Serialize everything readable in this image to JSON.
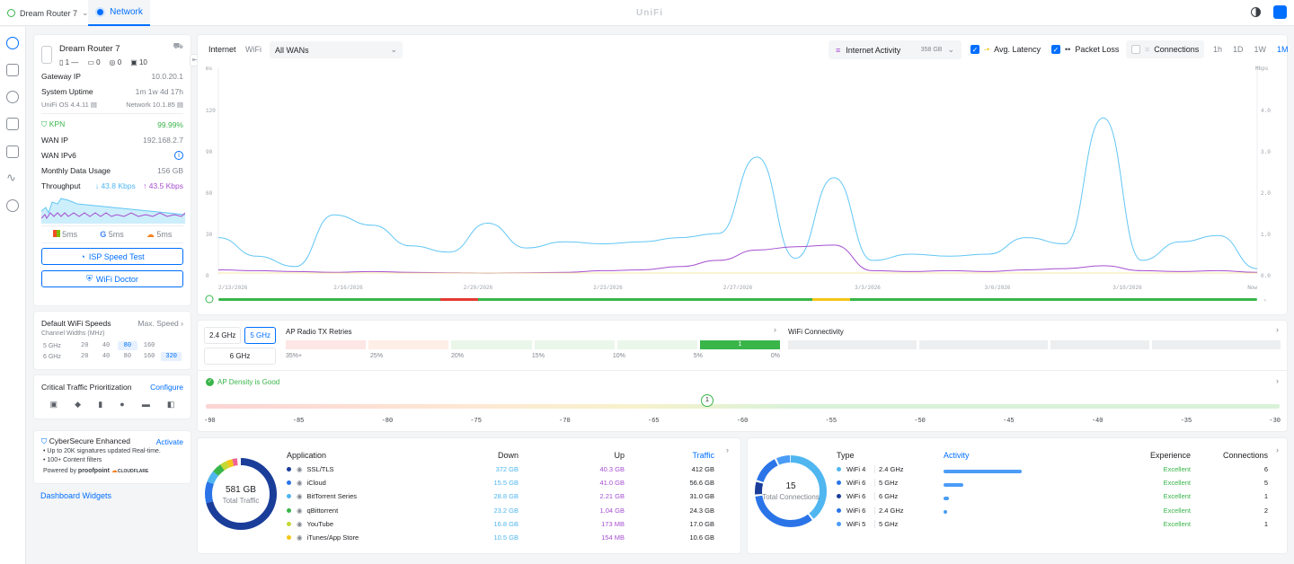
{
  "topbar": {
    "device": "Dream Router 7",
    "tab": "Network",
    "logo": "UniFi"
  },
  "device": {
    "name": "Dream Router 7",
    "ports": [
      {
        "icon": "phone-icon",
        "n": "1"
      },
      {
        "icon": "switch-icon",
        "n": "0"
      },
      {
        "icon": "ap-icon",
        "n": "0"
      },
      {
        "icon": "client-icon",
        "n": "10"
      }
    ],
    "gateway_label": "Gateway IP",
    "gateway": "10.0.20.1",
    "uptime_label": "System Uptime",
    "uptime": "1m 1w 4d 17h",
    "os": "UniFi OS 4.4.11",
    "network": "Network 10.1.85"
  },
  "wan": {
    "isp": "KPN",
    "uptime_pct": "99.99%",
    "ip_label": "WAN IP",
    "ip": "192.168.2.7",
    "ipv6_label": "WAN IPv6",
    "data_label": "Monthly Data Usage",
    "data": "156 GB",
    "tp_label": "Throughput",
    "down": "43.8 Kbps",
    "up": "43.5 Kbps",
    "latency": [
      {
        "icon": "microsoft-icon",
        "v": "5ms"
      },
      {
        "icon": "google-icon",
        "v": "5ms"
      },
      {
        "icon": "cloudflare-icon",
        "v": "5ms"
      }
    ],
    "speedtest": "ISP Speed Test",
    "wifidoctor": "WiFi Doctor"
  },
  "wifi_speeds": {
    "title": "Default WiFi Speeds",
    "link": "Max. Speed",
    "sub": "Channel Widths (MHz)",
    "rows": [
      {
        "band": "5 GHz",
        "vals": [
          "20",
          "40",
          "80",
          "160"
        ],
        "sel": 2
      },
      {
        "band": "6 GHz",
        "vals": [
          "20",
          "40",
          "80",
          "160",
          "320"
        ],
        "sel": 4
      }
    ]
  },
  "ctp": {
    "title": "Critical Traffic Prioritization",
    "link": "Configure"
  },
  "cyber": {
    "title": "CyberSecure Enhanced",
    "link": "Activate",
    "b1": "Up to 20K signatures updated Real-time.",
    "b2": "100+ Content filters",
    "powered": "Powered by",
    "p1": "proofpoint",
    "p2": "CLOUDFLARE"
  },
  "dash_link": "Dashboard Widgets",
  "main": {
    "tabs": [
      "Internet",
      "WiFi"
    ],
    "wan_select": "All WANs",
    "activity": "Internet Activity",
    "activity_val": "358 GB",
    "avg_latency": "Avg. Latency",
    "packet_loss": "Packet Loss",
    "connections": "Connections",
    "ranges": [
      "1h",
      "1D",
      "1W",
      "1M"
    ]
  },
  "chart_data": {
    "type": "line",
    "yleft_label": "ms",
    "yright_label": "Mbps",
    "yleft_ticks": [
      "120",
      "90",
      "60",
      "30",
      "0"
    ],
    "yright_ticks": [
      "4.0",
      "3.0",
      "2.0",
      "1.0",
      "0.0"
    ],
    "x_ticks": [
      "2/13/2026",
      "2/16/2026",
      "2/20/2026",
      "2/23/2026",
      "2/27/2026",
      "3/3/2026",
      "3/6/2026",
      "3/10/2026",
      "Now"
    ],
    "series": [
      {
        "color": "#62c6f5",
        "values": [
          0.9,
          0.45,
          0.2,
          1.45,
          1.2,
          0.7,
          0.55,
          1.25,
          0.65,
          0.8,
          0.75,
          0.8,
          0.9,
          1.0,
          2.85,
          0.4,
          2.35,
          0.35,
          0.5,
          0.45,
          0.5,
          0.9,
          0.75,
          3.8,
          0.35,
          0.8,
          0.95,
          0.15
        ]
      },
      {
        "color": "#a64fd0",
        "values": [
          0.12,
          0.1,
          0.08,
          0.06,
          0.08,
          0.06,
          0.05,
          0.04,
          0.05,
          0.06,
          0.1,
          0.12,
          0.2,
          0.35,
          0.6,
          0.68,
          0.72,
          0.1,
          0.08,
          0.1,
          0.08,
          0.12,
          0.15,
          0.22,
          0.1,
          0.08,
          0.1,
          0.06
        ]
      }
    ],
    "ymax": 4
  },
  "radio": {
    "bands": [
      "2.4 GHz",
      "5 GHz",
      "6 GHz"
    ],
    "sel": 1,
    "retries_title": "AP Radio TX Retries",
    "retries_cnt": "1",
    "retries_labels": [
      "35%+",
      "25%",
      "20%",
      "15%",
      "10%",
      "5%",
      "0%"
    ],
    "conn_title": "WiFi Connectivity",
    "density": "AP Density is Good",
    "density_ticks": [
      "-90",
      "-85",
      "-80",
      "-75",
      "-70",
      "-65",
      "-60",
      "-55",
      "-50",
      "-45",
      "-40",
      "-35",
      "-30"
    ],
    "density_val": "1"
  },
  "apps": {
    "total": "581 GB",
    "total_label": "Total Traffic",
    "cols": [
      "Application",
      "Down",
      "Up",
      "Traffic"
    ],
    "rows": [
      {
        "name": "SSL/TLS",
        "down": "372 GB",
        "up": "40.3 GB",
        "traffic": "412 GB",
        "color": "#1a3d99"
      },
      {
        "name": "iCloud",
        "down": "15.5 GB",
        "up": "41.0 GB",
        "traffic": "56.6 GB",
        "color": "#2a74e8"
      },
      {
        "name": "BitTorrent Series",
        "down": "28.8 GB",
        "up": "2.21 GB",
        "traffic": "31.0 GB",
        "color": "#4fb6f0"
      },
      {
        "name": "qBittorrent",
        "down": "23.2 GB",
        "up": "1.04 GB",
        "traffic": "24.3 GB",
        "color": "#39b54a"
      },
      {
        "name": "YouTube",
        "down": "16.8 GB",
        "up": "173 MB",
        "traffic": "17.0 GB",
        "color": "#c5d833"
      },
      {
        "name": "iTunes/App Store",
        "down": "10.5 GB",
        "up": "154 MB",
        "traffic": "10.6 GB",
        "color": "#f5c518"
      }
    ]
  },
  "conns": {
    "total": "15",
    "total_label": "Total Connections",
    "cols": [
      "Type",
      "Activity",
      "Experience",
      "Connections"
    ],
    "rows": [
      {
        "type": "WiFi 4",
        "band": "2.4 GHz",
        "act": 0.74,
        "exp": "Excellent",
        "n": "6",
        "color": "#4fb6f0"
      },
      {
        "type": "WiFi 6",
        "band": "5 GHz",
        "act": 0.19,
        "exp": "Excellent",
        "n": "5",
        "color": "#2a74e8"
      },
      {
        "type": "WiFi 6",
        "band": "6 GHz",
        "act": 0.05,
        "exp": "Excellent",
        "n": "1",
        "color": "#1a3d99"
      },
      {
        "type": "WiFi 6",
        "band": "2.4 GHz",
        "act": 0.03,
        "exp": "Excellent",
        "n": "2",
        "color": "#2a74e8"
      },
      {
        "type": "WiFi 5",
        "band": "5 GHz",
        "act": 0.0,
        "exp": "Excellent",
        "n": "1",
        "color": "#4a9cf7"
      }
    ]
  }
}
